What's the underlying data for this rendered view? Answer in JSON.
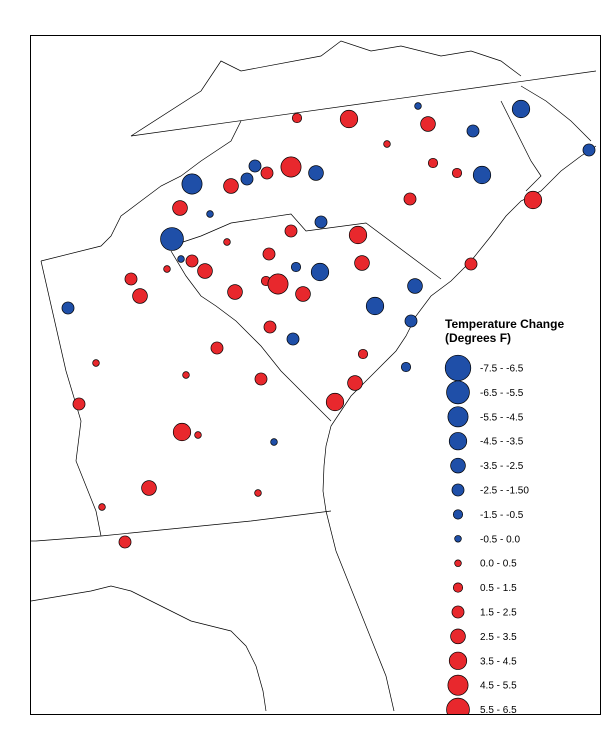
{
  "legend": {
    "title_line1": "Temperature Change",
    "title_line2": "(Degrees F)",
    "items": [
      {
        "label": "-7.5 - -6.5",
        "color": "#1f4fa8",
        "sign": "negative",
        "size_rank": 8
      },
      {
        "label": "-6.5 - -5.5",
        "color": "#1f4fa8",
        "sign": "negative",
        "size_rank": 7
      },
      {
        "label": "-5.5 - -4.5",
        "color": "#1f4fa8",
        "sign": "negative",
        "size_rank": 6
      },
      {
        "label": "-4.5 - -3.5",
        "color": "#1f4fa8",
        "sign": "negative",
        "size_rank": 5
      },
      {
        "label": "-3.5 - -2.5",
        "color": "#1f4fa8",
        "sign": "negative",
        "size_rank": 4
      },
      {
        "label": "-2.5 - -1.50",
        "color": "#1f4fa8",
        "sign": "negative",
        "size_rank": 3
      },
      {
        "label": "-1.5 - -0.5",
        "color": "#1f4fa8",
        "sign": "negative",
        "size_rank": 2
      },
      {
        "label": "-0.5 - 0.0",
        "color": "#1f4fa8",
        "sign": "negative",
        "size_rank": 1
      },
      {
        "label": "0.0 - 0.5",
        "color": "#e8282d",
        "sign": "positive",
        "size_rank": 1
      },
      {
        "label": "0.5 - 1.5",
        "color": "#e8282d",
        "sign": "positive",
        "size_rank": 2
      },
      {
        "label": "1.5 - 2.5",
        "color": "#e8282d",
        "sign": "positive",
        "size_rank": 3
      },
      {
        "label": "2.5 - 3.5",
        "color": "#e8282d",
        "sign": "positive",
        "size_rank": 4
      },
      {
        "label": "3.5 - 4.5",
        "color": "#e8282d",
        "sign": "positive",
        "size_rank": 5
      },
      {
        "label": "4.5 - 5.5",
        "color": "#e8282d",
        "sign": "positive",
        "size_rank": 6
      },
      {
        "label": "5.5 - 6.5",
        "color": "#e8282d",
        "sign": "positive",
        "size_rank": 7
      }
    ]
  },
  "colors": {
    "cooling": "#1f4fa8",
    "warming": "#e8282d",
    "boundary": "#000000"
  }
}
